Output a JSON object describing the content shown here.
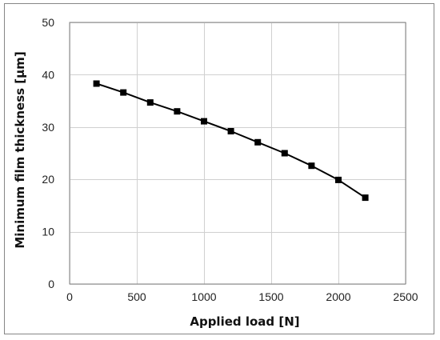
{
  "chart_data": {
    "type": "line",
    "title": "",
    "xlabel": "Applied load [N]",
    "ylabel": "Minimum film thickness [μm]",
    "xlim": [
      0,
      2500
    ],
    "ylim": [
      0,
      50
    ],
    "xticks": [
      0,
      500,
      1000,
      1500,
      2000,
      2500
    ],
    "yticks": [
      0,
      10,
      20,
      30,
      40,
      50
    ],
    "grid": true,
    "legend": "none",
    "series": [
      {
        "color": "#000000",
        "marker": "square",
        "x": [
          200,
          400,
          600,
          800,
          1000,
          1200,
          1400,
          1600,
          1800,
          2000,
          2200
        ],
        "y": [
          38.3,
          36.6,
          34.7,
          33.0,
          31.1,
          29.2,
          27.1,
          25.0,
          22.6,
          19.9,
          16.5
        ]
      }
    ]
  }
}
